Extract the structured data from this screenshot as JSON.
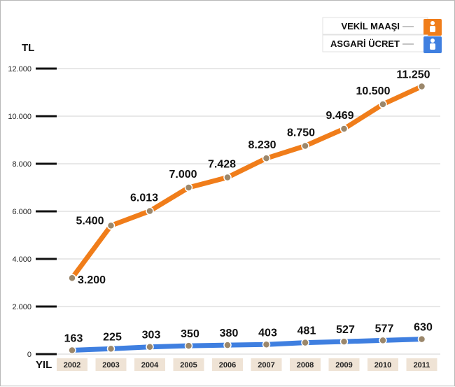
{
  "chart_data": {
    "type": "line",
    "x": [
      "2002",
      "2003",
      "2004",
      "2005",
      "2006",
      "2007",
      "2008",
      "2009",
      "2010",
      "2011"
    ],
    "series": [
      {
        "name": "VEKİL MAAŞI",
        "color": "#f07d1a",
        "values": [
          3200,
          5400,
          6013,
          7000,
          7428,
          8230,
          8750,
          9469,
          10500,
          11250
        ],
        "labels": [
          "3.200",
          "5.400",
          "6.013",
          "7.000",
          "7.428",
          "8.230",
          "8.750",
          "9.469",
          "10.500",
          "11.250"
        ]
      },
      {
        "name": "ASGARİ ÜCRET",
        "color": "#3f7fe0",
        "values": [
          163,
          225,
          303,
          350,
          380,
          403,
          481,
          527,
          577,
          630
        ],
        "labels": [
          "163",
          "225",
          "303",
          "350",
          "380",
          "403",
          "481",
          "527",
          "577",
          "630"
        ]
      }
    ],
    "y_ticks": [
      0,
      2000,
      4000,
      6000,
      8000,
      10000,
      12000
    ],
    "y_tick_labels": [
      "0",
      "2.000",
      "4.000",
      "6.000",
      "8.000",
      "10.000",
      "12.000"
    ],
    "ylabel": "TL",
    "xlabel": "YIL",
    "ylim": [
      0,
      12000
    ],
    "grid": true,
    "legend_position": "top-right",
    "marker_color": "#9b876b",
    "year_box_color": "#efe3d5",
    "legend_icon": "person-icon"
  }
}
